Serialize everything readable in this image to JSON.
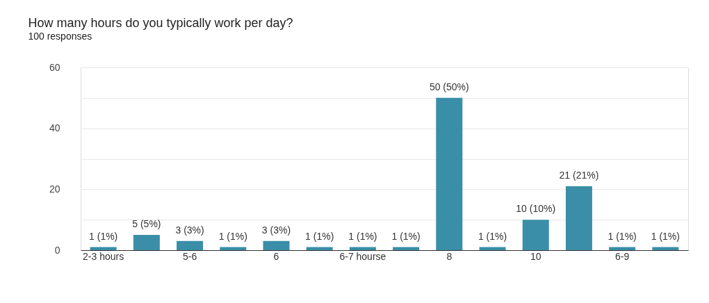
{
  "chart_data": {
    "type": "bar",
    "title": "How many hours do you typically work per day?",
    "subtitle": "100 responses",
    "categories": [
      "2-3 hours",
      null,
      "5-6",
      null,
      "6",
      null,
      "6-7 hourse",
      null,
      "8",
      null,
      "10",
      null,
      "6-9",
      null
    ],
    "values": [
      1,
      5,
      3,
      1,
      3,
      1,
      1,
      1,
      50,
      1,
      10,
      21,
      1,
      1
    ],
    "value_labels": [
      "1 (1%)",
      "5 (5%)",
      "3 (3%)",
      "1 (1%)",
      "3 (3%)",
      "1 (1%)",
      "1 (1%)",
      "1 (1%)",
      "50 (50%)",
      "1 (1%)",
      "10 (10%)",
      "21 (21%)",
      "1 (1%)",
      "1 (1%)"
    ],
    "color": "#3a8ea8",
    "ylim": [
      0,
      60
    ],
    "yticks": [
      0,
      {
        "value": 10,
        "label": null
      },
      20,
      {
        "value": 30,
        "label": null
      },
      40,
      {
        "value": 50,
        "label": null
      },
      60
    ],
    "grid": "y"
  }
}
